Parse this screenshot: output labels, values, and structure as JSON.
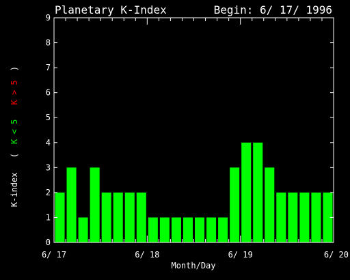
{
  "header": {
    "title": "Planetary K-Index",
    "begin": "Begin: 6/ 17/ 1996"
  },
  "colors": {
    "background": "#000000",
    "bar": "#00ff00",
    "axis": "#ffffff",
    "text": "#ffffff",
    "ylabel_green": "#00ff00",
    "ylabel_red": "#ff0000"
  },
  "chart_data": {
    "type": "bar",
    "title": "Planetary K-Index",
    "subtitle": "Begin: 6/ 17/ 1996",
    "xlabel": "Month/Day",
    "ylabel_parts": [
      {
        "text": "K-index",
        "color": "#ffffff"
      },
      {
        "text": "(",
        "color": "#ffffff"
      },
      {
        "text": "K < 5",
        "color": "#00ff00"
      },
      {
        "text": "K > 5",
        "color": "#ff0000"
      },
      {
        "text": ")",
        "color": "#ffffff"
      }
    ],
    "ylim": [
      0,
      9
    ],
    "yticks": [
      0,
      1,
      2,
      3,
      4,
      5,
      6,
      7,
      8,
      9
    ],
    "xlim_days": [
      0,
      3
    ],
    "xticks": [
      {
        "day": 0,
        "label": "6/ 17"
      },
      {
        "day": 1,
        "label": "6/ 18"
      },
      {
        "day": 2,
        "label": "6/ 19"
      },
      {
        "day": 3,
        "label": "6/ 20"
      }
    ],
    "interval": "3-hour",
    "values": [
      2,
      3,
      1,
      3,
      2,
      2,
      2,
      2,
      1,
      1,
      1,
      1,
      1,
      1,
      1,
      3,
      4,
      4,
      3,
      2,
      2,
      2,
      2,
      2
    ],
    "grid": false
  }
}
